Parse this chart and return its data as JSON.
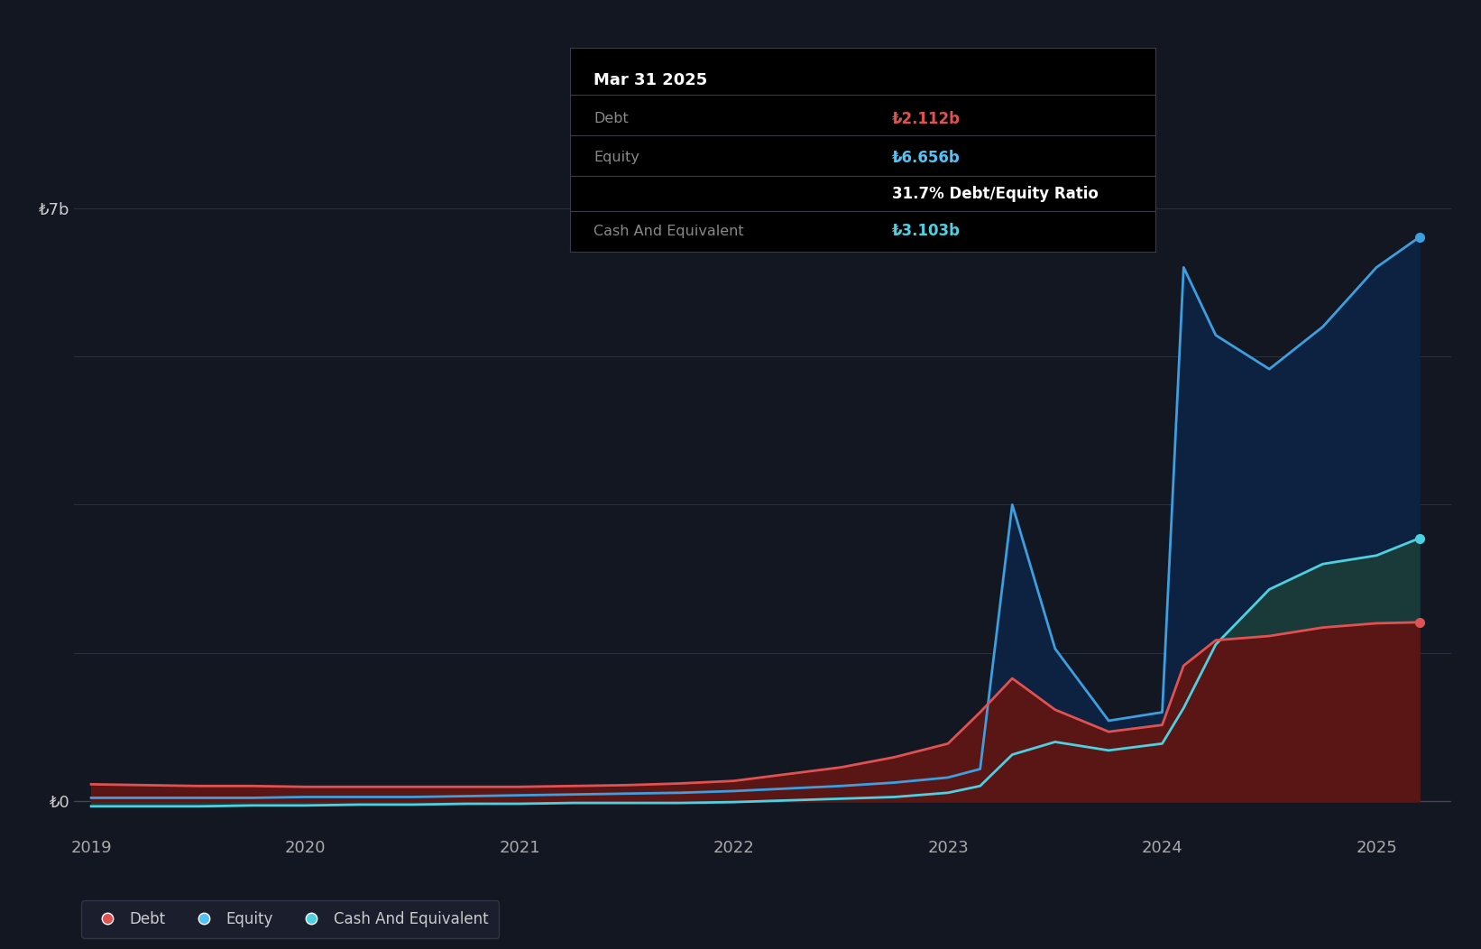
{
  "background_color": "#131722",
  "plot_bg_color": "#131722",
  "ylim": [
    -0.4,
    8.0
  ],
  "x_tick_labels": [
    "2019",
    "2020",
    "2021",
    "2022",
    "2023",
    "2024",
    "2025"
  ],
  "x_tick_vals": [
    2019,
    2020,
    2021,
    2022,
    2023,
    2024,
    2025
  ],
  "tooltip": {
    "date": "Mar 31 2025",
    "debt_label": "Debt",
    "debt_value": "₺2.112b",
    "equity_label": "Equity",
    "equity_value": "₺6.656b",
    "ratio_text": "31.7% Debt/Equity Ratio",
    "cash_label": "Cash And Equivalent",
    "cash_value": "₺3.103b",
    "debt_color": "#e05252",
    "equity_color": "#4fc3f7",
    "cash_color": "#4dd0e1",
    "ratio_color": "#ffffff"
  },
  "legend": [
    {
      "label": "Debt",
      "color": "#e05252"
    },
    {
      "label": "Equity",
      "color": "#4fc3f7"
    },
    {
      "label": "Cash And Equivalent",
      "color": "#4dd0e1"
    }
  ],
  "series": {
    "x": [
      2019.0,
      2019.25,
      2019.5,
      2019.75,
      2020.0,
      2020.25,
      2020.5,
      2020.75,
      2021.0,
      2021.25,
      2021.5,
      2021.75,
      2022.0,
      2022.25,
      2022.5,
      2022.75,
      2023.0,
      2023.15,
      2023.3,
      2023.5,
      2023.75,
      2024.0,
      2024.1,
      2024.25,
      2024.5,
      2024.75,
      2025.0,
      2025.2
    ],
    "debt": [
      0.2,
      0.19,
      0.18,
      0.18,
      0.17,
      0.17,
      0.17,
      0.17,
      0.17,
      0.18,
      0.19,
      0.21,
      0.24,
      0.32,
      0.4,
      0.52,
      0.68,
      1.05,
      1.45,
      1.08,
      0.82,
      0.9,
      1.6,
      1.9,
      1.95,
      2.05,
      2.1,
      2.112
    ],
    "equity": [
      0.04,
      0.04,
      0.04,
      0.04,
      0.05,
      0.05,
      0.05,
      0.06,
      0.07,
      0.08,
      0.09,
      0.1,
      0.12,
      0.15,
      0.18,
      0.22,
      0.28,
      0.38,
      3.5,
      1.8,
      0.95,
      1.05,
      6.3,
      5.5,
      5.1,
      5.6,
      6.3,
      6.656
    ],
    "cash": [
      -0.06,
      -0.06,
      -0.06,
      -0.05,
      -0.05,
      -0.04,
      -0.04,
      -0.03,
      -0.03,
      -0.02,
      -0.02,
      -0.02,
      -0.01,
      0.01,
      0.03,
      0.05,
      0.1,
      0.18,
      0.55,
      0.7,
      0.6,
      0.68,
      1.1,
      1.85,
      2.5,
      2.8,
      2.9,
      3.103
    ]
  },
  "line_colors": {
    "debt": "#e05252",
    "equity": "#3d9fe0",
    "cash": "#4dd0e1"
  },
  "fill_colors": {
    "debt": "#5a1515",
    "equity": "#0c2240",
    "cash": "#1a3a3a"
  },
  "grid_color": "#2a3040",
  "tick_label_color": "#8892a0",
  "ytick_labels": [
    "₺0",
    "₺7b"
  ],
  "ytick_vals": [
    0,
    7
  ]
}
